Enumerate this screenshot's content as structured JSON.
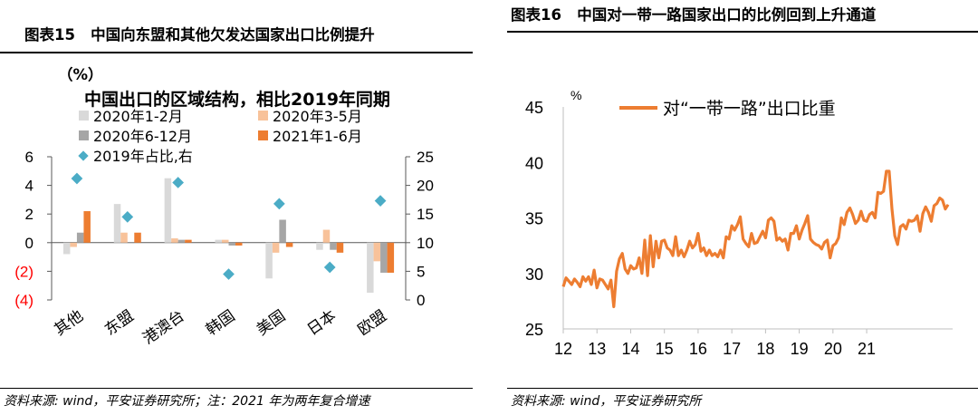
{
  "left": {
    "title": "图表15   中国向东盟和其他欠发达国家出口比例提升",
    "title_cont": "（%）",
    "source": "资料来源: wind，平安证券研究所；注：2021 年为两年复合增速",
    "chart_data": {
      "type": "bar",
      "title": "中国出口的区域结构，相比2019年同期",
      "categories": [
        "其他",
        "东盟",
        "港澳台",
        "韩国",
        "美国",
        "日本",
        "欧盟"
      ],
      "series": [
        {
          "name": "2020年1-2月",
          "color": "#d9d9d9",
          "values": [
            -0.8,
            2.7,
            4.5,
            0.2,
            -2.5,
            -0.5,
            -3.5
          ]
        },
        {
          "name": "2020年3-5月",
          "color": "#f8c29a",
          "values": [
            -0.3,
            0.7,
            0.3,
            0.2,
            -0.7,
            0.9,
            -1.3
          ]
        },
        {
          "name": "2020年6-12月",
          "color": "#a6a6a6",
          "values": [
            0.7,
            0.0,
            0.2,
            -0.2,
            1.6,
            -0.5,
            -2.1
          ]
        },
        {
          "name": "2021年1-6月",
          "color": "#ed7d31",
          "values": [
            2.2,
            0.7,
            0.2,
            -0.2,
            -0.3,
            -0.7,
            -2.1
          ]
        },
        {
          "name": "2019年占比,右",
          "color": "#4bacc6",
          "type": "scatter",
          "axis": "right",
          "values": [
            21.2,
            14.5,
            20.5,
            4.5,
            16.8,
            5.7,
            17.3
          ]
        }
      ],
      "ylim": [
        -4,
        6
      ],
      "yticks": [
        "(4)",
        "(2)",
        "0",
        "2",
        "4",
        "6"
      ],
      "y2lim": [
        0,
        25
      ],
      "y2ticks": [
        "0",
        "5",
        "10",
        "15",
        "20",
        "25"
      ],
      "negative_tick_color": "#ff0000",
      "legend_placement": "top"
    }
  },
  "right": {
    "title": "图表16   中国对一带一路国家出口的比例回到上升通道",
    "source": "资料来源: wind，平安证券研究所",
    "chart_data": {
      "type": "line",
      "ylabel": "%",
      "ylim": [
        25,
        45
      ],
      "yticks": [
        "25",
        "30",
        "35",
        "40",
        "45"
      ],
      "xticks": [
        "12",
        "13",
        "14",
        "15",
        "16",
        "17",
        "18",
        "19",
        "20",
        "21"
      ],
      "series": [
        {
          "name": "对“一带一路”出口比重",
          "color": "#ed7d31",
          "x_start_year": 2012,
          "frequency": "monthly",
          "values": [
            28.8,
            29.6,
            29.3,
            29.0,
            29.5,
            29.2,
            28.8,
            29.7,
            29.3,
            29.7,
            29.0,
            30.3,
            28.7,
            29.5,
            29.4,
            29.0,
            28.6,
            29.4,
            27.0,
            30.2,
            31.3,
            31.8,
            30.4,
            30.0,
            30.7,
            30.4,
            30.5,
            31.4,
            30.0,
            33.0,
            29.8,
            33.4,
            30.6,
            32.9,
            31.4,
            32.9,
            33.0,
            32.3,
            32.1,
            31.6,
            33.3,
            31.6,
            32.1,
            31.5,
            32.1,
            32.9,
            32.3,
            32.6,
            33.6,
            32.0,
            32.3,
            31.6,
            32.1,
            31.6,
            31.8,
            31.5,
            32.1,
            31.4,
            33.3,
            33.1,
            34.3,
            33.9,
            34.4,
            35.1,
            33.1,
            32.7,
            32.4,
            33.6,
            32.7,
            32.8,
            33.3,
            33.8,
            33.2,
            34.8,
            35.0,
            34.7,
            33.0,
            33.2,
            32.9,
            33.1,
            32.1,
            33.6,
            33.6,
            34.3,
            33.1,
            33.9,
            34.5,
            35.2,
            33.1,
            32.8,
            32.6,
            32.5,
            32.2,
            32.8,
            33.0,
            31.4,
            32.5,
            32.7,
            33.2,
            35.0,
            34.4,
            35.5,
            35.9,
            35.3,
            34.5,
            34.8,
            35.6,
            34.8,
            34.7,
            35.3,
            35.5,
            35.0,
            37.3,
            37.2,
            37.4,
            39.2,
            39.2,
            35.8,
            33.4,
            32.6,
            34.2,
            34.4,
            34.0,
            34.8,
            34.7,
            34.8,
            35.2,
            33.8,
            35.4,
            36.0,
            35.5,
            34.7,
            36.1,
            36.3,
            36.8,
            36.6,
            35.8,
            36.2
          ]
        }
      ]
    }
  }
}
